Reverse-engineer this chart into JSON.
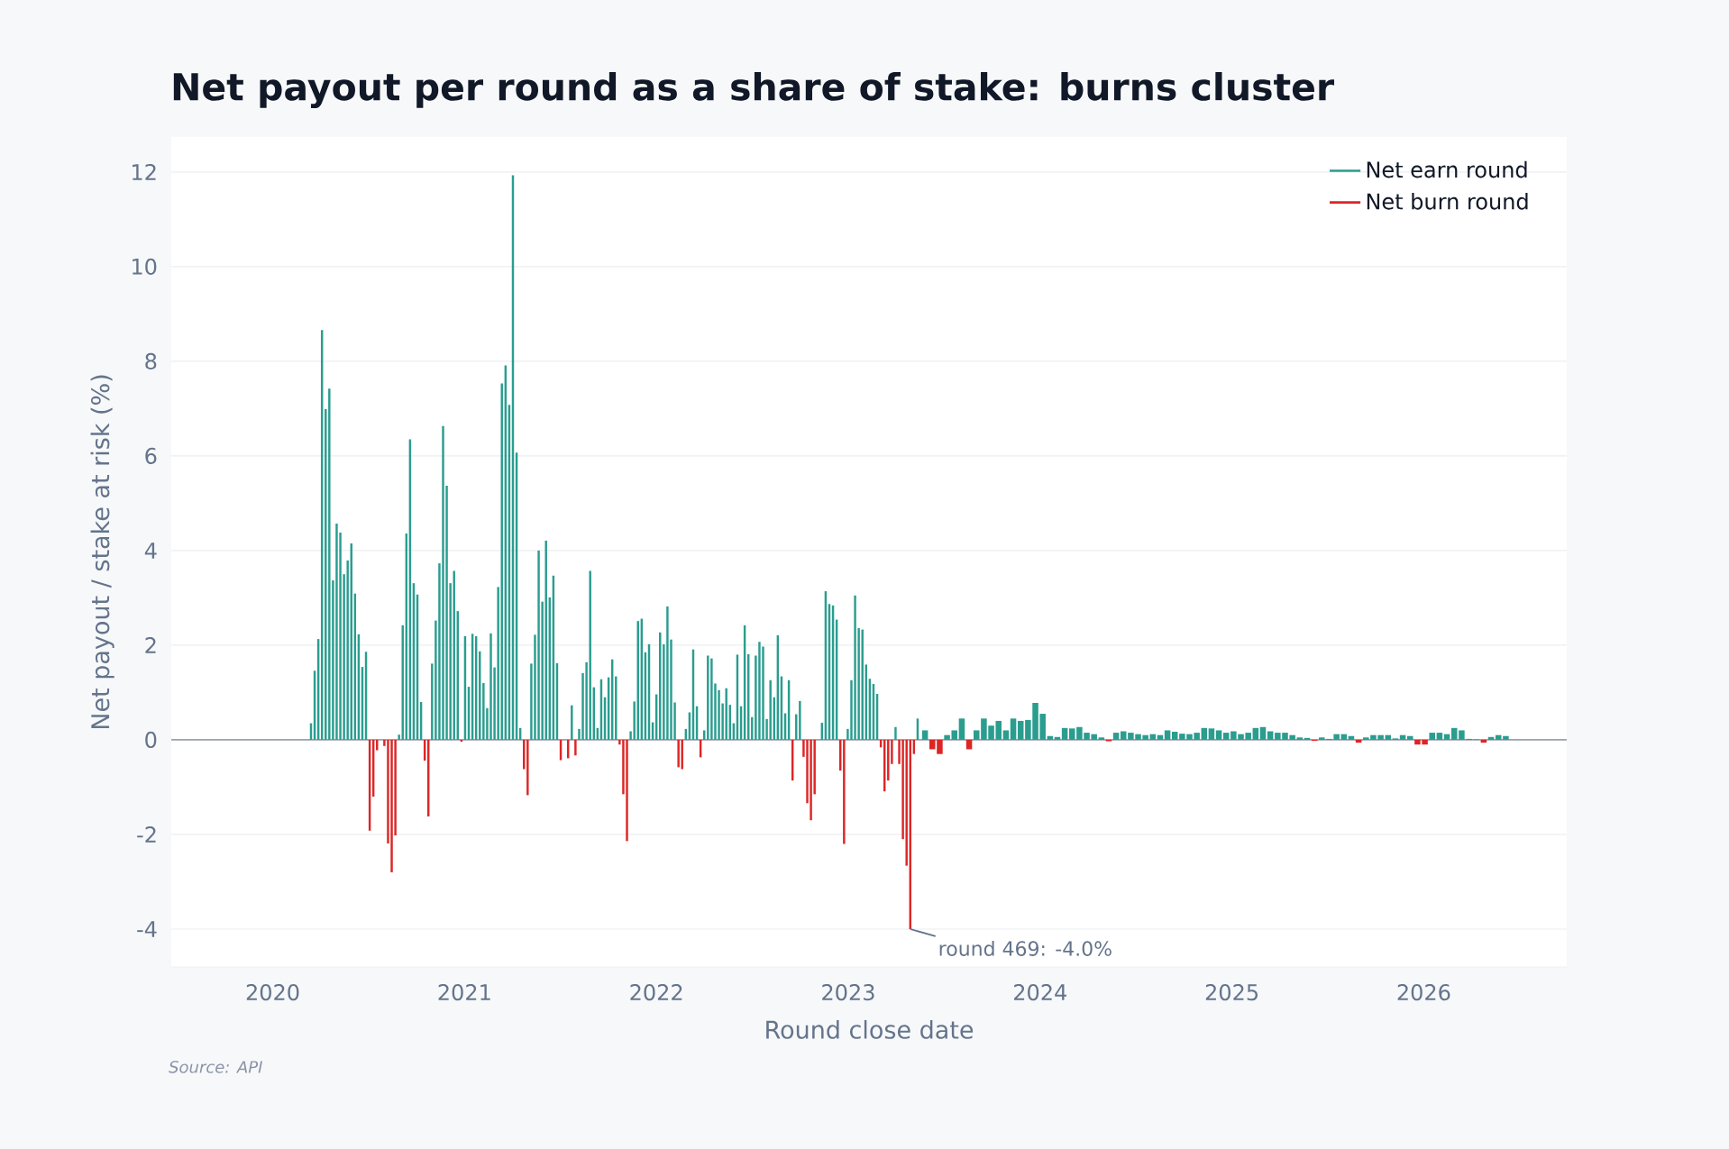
{
  "chart_data": {
    "type": "bar",
    "title": "Net payout per round as a share of stake: burns cluster",
    "xlabel": "Round close date",
    "ylabel": "Net payout / stake at risk (%)",
    "x": [
      "2020-03-14",
      "2020-03-21",
      "2020-03-28",
      "2020-04-04",
      "2020-04-11",
      "2020-04-18",
      "2020-04-25",
      "2020-05-02",
      "2020-05-09",
      "2020-05-16",
      "2020-05-23",
      "2020-05-30",
      "2020-06-06",
      "2020-06-13",
      "2020-06-20",
      "2020-06-27",
      "2020-07-04",
      "2020-07-11",
      "2020-07-18",
      "2020-07-25",
      "2020-08-01",
      "2020-08-08",
      "2020-08-15",
      "2020-08-22",
      "2020-08-29",
      "2020-09-05",
      "2020-09-12",
      "2020-09-19",
      "2020-09-26",
      "2020-10-03",
      "2020-10-10",
      "2020-10-17",
      "2020-10-24",
      "2020-10-31",
      "2020-11-07",
      "2020-11-14",
      "2020-11-21",
      "2020-11-28",
      "2020-12-05",
      "2020-12-12",
      "2020-12-19",
      "2020-12-26",
      "2021-01-02",
      "2021-01-09",
      "2021-01-16",
      "2021-01-23",
      "2021-01-30",
      "2021-02-06",
      "2021-02-13",
      "2021-02-20",
      "2021-02-27",
      "2021-03-06",
      "2021-03-13",
      "2021-03-20",
      "2021-03-27",
      "2021-04-03",
      "2021-04-10",
      "2021-04-17",
      "2021-04-24",
      "2021-05-01",
      "2021-05-08",
      "2021-05-15",
      "2021-05-22",
      "2021-05-29",
      "2021-06-05",
      "2021-06-12",
      "2021-06-19",
      "2021-06-26",
      "2021-07-03",
      "2021-07-10",
      "2021-07-17",
      "2021-07-24",
      "2021-07-31",
      "2021-08-07",
      "2021-08-14",
      "2021-08-21",
      "2021-08-28",
      "2021-09-04",
      "2021-09-11",
      "2021-09-18",
      "2021-09-25",
      "2021-10-02",
      "2021-10-09",
      "2021-10-16",
      "2021-10-23",
      "2021-10-30",
      "2021-11-06",
      "2021-11-13",
      "2021-11-20",
      "2021-11-27",
      "2021-12-04",
      "2021-12-11",
      "2021-12-18",
      "2021-12-25",
      "2022-01-01",
      "2022-01-08",
      "2022-01-15",
      "2022-01-22",
      "2022-01-29",
      "2022-02-05",
      "2022-02-12",
      "2022-02-19",
      "2022-02-26",
      "2022-03-05",
      "2022-03-12",
      "2022-03-19",
      "2022-03-26",
      "2022-04-02",
      "2022-04-09",
      "2022-04-16",
      "2022-04-23",
      "2022-04-30",
      "2022-05-07",
      "2022-05-14",
      "2022-05-21",
      "2022-05-28",
      "2022-06-04",
      "2022-06-11",
      "2022-06-18",
      "2022-06-25",
      "2022-07-02",
      "2022-07-09",
      "2022-07-16",
      "2022-07-23",
      "2022-07-30",
      "2022-08-06",
      "2022-08-13",
      "2022-08-20",
      "2022-08-27",
      "2022-09-03",
      "2022-09-10",
      "2022-09-17",
      "2022-09-24",
      "2022-10-01",
      "2022-10-08",
      "2022-10-15",
      "2022-10-22",
      "2022-10-29",
      "2022-11-05",
      "2022-11-12",
      "2022-11-19",
      "2022-11-26",
      "2022-12-03",
      "2022-12-10",
      "2022-12-17",
      "2022-12-24",
      "2022-12-31",
      "2023-01-07",
      "2023-01-14",
      "2023-01-21",
      "2023-01-28",
      "2023-02-04",
      "2023-02-11",
      "2023-02-18",
      "2023-02-25",
      "2023-03-04",
      "2023-03-11",
      "2023-03-18",
      "2023-03-25",
      "2023-04-01",
      "2023-04-08",
      "2023-04-15",
      "2023-04-22",
      "2023-04-29",
      "2023-05-06",
      "2023-05-13",
      "2023-05-27",
      "2023-06-10",
      "2023-06-24",
      "2023-07-08",
      "2023-07-22",
      "2023-08-05",
      "2023-08-19",
      "2023-09-02",
      "2023-09-16",
      "2023-09-30",
      "2023-10-14",
      "2023-10-28",
      "2023-11-11",
      "2023-11-25",
      "2023-12-09",
      "2023-12-23",
      "2024-01-06",
      "2024-01-20",
      "2024-02-03",
      "2024-02-17",
      "2024-03-02",
      "2024-03-16",
      "2024-03-30",
      "2024-04-13",
      "2024-04-27",
      "2024-05-11",
      "2024-05-25",
      "2024-06-08",
      "2024-06-22",
      "2024-07-06",
      "2024-07-20",
      "2024-08-03",
      "2024-08-17",
      "2024-08-31",
      "2024-09-14",
      "2024-09-28",
      "2024-10-12",
      "2024-10-26",
      "2024-11-09",
      "2024-11-23",
      "2024-12-07",
      "2024-12-21",
      "2025-01-04",
      "2025-01-18",
      "2025-02-01",
      "2025-02-15",
      "2025-03-01",
      "2025-03-15",
      "2025-03-29",
      "2025-04-12",
      "2025-04-26",
      "2025-05-10",
      "2025-05-24",
      "2025-06-07",
      "2025-06-21",
      "2025-07-05",
      "2025-07-19",
      "2025-08-02",
      "2025-08-16",
      "2025-08-30",
      "2025-09-13",
      "2025-09-27",
      "2025-10-11",
      "2025-10-25",
      "2025-11-08",
      "2025-11-22",
      "2025-12-06",
      "2025-12-20",
      "2026-01-03",
      "2026-01-17",
      "2026-01-31",
      "2026-02-14",
      "2026-02-28",
      "2026-03-14",
      "2026-03-28",
      "2026-04-11",
      "2026-04-25",
      "2026-05-09",
      "2026-05-23",
      "2026-06-06"
    ],
    "series": [
      {
        "name": "Net earn round",
        "color": "#2a9d8f",
        "values": [
          0.35,
          1.46,
          2.13,
          8.66,
          6.99,
          7.42,
          3.37,
          4.57,
          4.38,
          3.5,
          3.79,
          4.15,
          3.09,
          2.23,
          1.54,
          1.86,
          null,
          null,
          null,
          null,
          null,
          null,
          null,
          null,
          0.11,
          2.42,
          4.36,
          6.35,
          3.31,
          3.07,
          0.8,
          null,
          null,
          1.61,
          2.52,
          3.73,
          6.63,
          5.37,
          3.31,
          3.57,
          2.72,
          null,
          2.19,
          1.12,
          2.24,
          2.19,
          1.87,
          1.2,
          0.67,
          2.25,
          1.53,
          3.23,
          7.53,
          7.91,
          7.08,
          11.93,
          6.07,
          0.25,
          null,
          null,
          1.61,
          2.22,
          4,
          2.92,
          4.21,
          3.01,
          3.47,
          1.62,
          null,
          null,
          null,
          0.73,
          null,
          0.23,
          1.41,
          1.64,
          3.57,
          1.11,
          0.25,
          1.28,
          0.9,
          1.32,
          1.7,
          1.34,
          null,
          null,
          null,
          0.18,
          0.81,
          2.51,
          2.56,
          1.85,
          2.02,
          0.37,
          0.96,
          2.27,
          2.02,
          2.82,
          2.12,
          0.79,
          null,
          null,
          0.23,
          0.58,
          1.91,
          0.71,
          null,
          0.2,
          1.78,
          1.72,
          1.19,
          1.05,
          0.77,
          1.09,
          0.74,
          0.35,
          1.8,
          0.71,
          2.42,
          1.81,
          0.48,
          1.78,
          2.07,
          1.97,
          0.44,
          1.26,
          0.9,
          2.21,
          1.34,
          0.56,
          1.26,
          null,
          0.54,
          0.82,
          null,
          null,
          null,
          null,
          null,
          0.36,
          3.14,
          2.87,
          2.84,
          2.54,
          null,
          null,
          0.23,
          1.26,
          3.05,
          2.36,
          2.33,
          1.59,
          1.29,
          1.18,
          0.97,
          null,
          null,
          null,
          null,
          0.27,
          null,
          null,
          null,
          null,
          null,
          0.45,
          0.2,
          null,
          null,
          0.1,
          0.2,
          0.45,
          null,
          0.2,
          0.45,
          0.3,
          0.4,
          0.2,
          0.45,
          0.4,
          0.42,
          0.78,
          0.55,
          0.08,
          0.06,
          0.25,
          0.24,
          0.27,
          0.15,
          0.12,
          0.05,
          null,
          0.15,
          0.18,
          0.15,
          0.12,
          0.1,
          0.12,
          0.1,
          0.2,
          0.17,
          0.13,
          0.12,
          0.15,
          0.25,
          0.24,
          0.2,
          0.15,
          0.18,
          0.12,
          0.15,
          0.25,
          0.27,
          0.18,
          0.15,
          0.15,
          0.1,
          0.05,
          0.04,
          null,
          0.05,
          0.02,
          0.12,
          0.12,
          0.08,
          null,
          0.05,
          0.1,
          0.1,
          0.1,
          0.03,
          0.1,
          0.08,
          null,
          null,
          0.15,
          0.15,
          0.12,
          0.25,
          0.2,
          0.02,
          0.01,
          null,
          0.06,
          0.1,
          0.08
        ]
      },
      {
        "name": "Net burn round",
        "color": "#dc2626",
        "values": [
          null,
          null,
          null,
          null,
          null,
          null,
          null,
          null,
          null,
          null,
          null,
          null,
          null,
          null,
          null,
          null,
          -1.92,
          -1.2,
          -0.22,
          null,
          -0.13,
          -2.19,
          -2.8,
          -2.02,
          null,
          null,
          null,
          null,
          null,
          null,
          null,
          -0.44,
          -1.62,
          null,
          null,
          null,
          null,
          null,
          null,
          null,
          null,
          -0.04,
          null,
          null,
          null,
          null,
          null,
          null,
          null,
          null,
          null,
          null,
          null,
          null,
          null,
          null,
          null,
          null,
          -0.62,
          -1.17,
          null,
          null,
          null,
          null,
          null,
          null,
          null,
          null,
          -0.43,
          null,
          -0.39,
          null,
          -0.33,
          null,
          null,
          null,
          null,
          null,
          null,
          null,
          null,
          null,
          null,
          null,
          -0.1,
          -1.15,
          -2.14,
          null,
          null,
          null,
          null,
          null,
          null,
          null,
          null,
          null,
          null,
          null,
          null,
          null,
          -0.58,
          -0.62,
          null,
          null,
          null,
          null,
          -0.37,
          null,
          null,
          null,
          null,
          null,
          null,
          null,
          null,
          null,
          null,
          null,
          null,
          null,
          null,
          null,
          null,
          null,
          null,
          null,
          null,
          null,
          null,
          null,
          null,
          -0.86,
          null,
          null,
          -0.36,
          -1.34,
          -1.7,
          -1.15,
          null,
          null,
          null,
          null,
          null,
          null,
          -0.65,
          -2.2,
          null,
          null,
          null,
          null,
          null,
          null,
          null,
          null,
          null,
          -0.16,
          -1.09,
          -0.86,
          -0.51,
          null,
          -0.51,
          -2.1,
          -2.66,
          -4,
          -0.3,
          null,
          null,
          -0.2,
          -0.3,
          null,
          null,
          null,
          -0.2,
          null,
          null,
          null,
          null,
          null,
          null,
          null,
          null,
          null,
          null,
          null,
          null,
          null,
          null,
          null,
          null,
          null,
          null,
          -0.03,
          null,
          null,
          null,
          null,
          null,
          null,
          null,
          null,
          null,
          null,
          null,
          null,
          null,
          null,
          null,
          null,
          null,
          null,
          null,
          null,
          null,
          null,
          null,
          null,
          null,
          null,
          null,
          -0.02,
          null,
          null,
          null,
          null,
          null,
          -0.06,
          null,
          null,
          null,
          null,
          null,
          null,
          null,
          -0.1,
          -0.1,
          null,
          null,
          null,
          null,
          null,
          null,
          null,
          -0.06,
          null,
          null,
          null
        ]
      }
    ],
    "xlim": [
      "2019-06-22",
      "2026-09-30"
    ],
    "xticks": [
      "2020",
      "2021",
      "2022",
      "2023",
      "2024",
      "2025",
      "2026"
    ],
    "ylim": [
      -4.8,
      12.74
    ],
    "yticks": [
      -4,
      -2,
      0,
      2,
      4,
      6,
      8,
      10,
      12
    ],
    "grid": "y",
    "legend": "top right",
    "ref_lines": [
      {
        "axis": "y",
        "value": 0,
        "color": "#9aa3b2"
      }
    ],
    "annotations": [
      {
        "text": "round 469: -4.0%",
        "x": "2023-04-29",
        "y": -4.0
      },
      "Source: API"
    ]
  }
}
